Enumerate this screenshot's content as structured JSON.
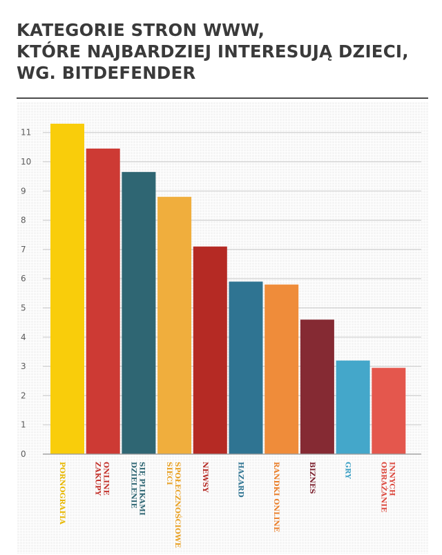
{
  "title_lines": [
    "KATEGORIE STRON WWW,",
    "KTÓRE NAJBARDZIEJ INTERESUJĄ DZIECI,",
    "WG. BITDEFENDER"
  ],
  "chart_data": {
    "type": "bar",
    "title": "KATEGORIE STRON WWW, KTÓRE NAJBARDZIEJ INTERESUJĄ DZIECI, WG. BITDEFENDER",
    "xlabel": "",
    "ylabel": "",
    "ylim": [
      0,
      11.5
    ],
    "yticks": [
      0,
      1,
      2,
      3,
      4,
      5,
      6,
      7,
      8,
      9,
      10,
      11
    ],
    "grid": true,
    "categories": [
      [
        "PORNOGRAFIA"
      ],
      [
        "ZAKUPY",
        "ONLINE"
      ],
      [
        "DZIELENIE",
        "SIĘ PLIKAMI"
      ],
      [
        "SIECI",
        "SPOŁECZNOŚCIOWE"
      ],
      [
        "NEWSY"
      ],
      [
        "HAZARD"
      ],
      [
        "RANDKI ONLINE"
      ],
      [
        "BIZNES"
      ],
      [
        "GRY"
      ],
      [
        "OBRAŻANIE",
        "INNYCH"
      ]
    ],
    "values": [
      11.3,
      10.45,
      9.65,
      8.8,
      7.1,
      5.9,
      5.8,
      4.6,
      3.2,
      2.95
    ],
    "colors": [
      "#f9cd0b",
      "#cd3a34",
      "#2f6673",
      "#f0ae3d",
      "#b52a24",
      "#2f7492",
      "#ef8c3a",
      "#852a33",
      "#44a7ca",
      "#e4574d"
    ],
    "label_colors": [
      "#e8b800",
      "#c3322c",
      "#2f6673",
      "#e9a124",
      "#b52a24",
      "#2f7492",
      "#ea7f2a",
      "#7e2431",
      "#3a9fc4",
      "#dc4a40"
    ]
  }
}
